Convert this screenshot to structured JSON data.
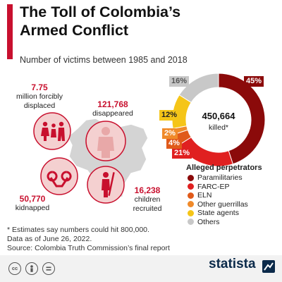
{
  "title_lines": [
    "The Toll of Colombia’s",
    "Armed Conflict"
  ],
  "subtitle": "Number of victims between 1985 and 2018",
  "stats": {
    "displaced": {
      "value": "7.75",
      "label_lines": [
        "million forcibly",
        "displaced"
      ]
    },
    "disappeared": {
      "value": "121,768",
      "label": "disappeared"
    },
    "kidnapped": {
      "value": "50,770",
      "label": "kidnapped"
    },
    "recruited": {
      "value": "16,238",
      "label_lines": [
        "children",
        "recruited"
      ]
    }
  },
  "chart_data": {
    "type": "pie",
    "center_value": "450,664",
    "center_label": "killed*",
    "legend_title": "Alleged perpetrators",
    "labels": [
      "Paramilitaries",
      "FARC-EP",
      "ELN",
      "Other guerrillas",
      "State agents",
      "Others"
    ],
    "values": [
      45,
      21,
      4,
      2,
      12,
      16
    ],
    "value_labels": [
      "45%",
      "21%",
      "4%",
      "2%",
      "12%",
      "16%"
    ],
    "colors": [
      "#8b0a0a",
      "#e02020",
      "#e05a1a",
      "#f08a2a",
      "#f5c518",
      "#c8c8c8"
    ]
  },
  "notes": [
    "* Estimates say numbers could hit 800,000.",
    "Data as of June 26, 2022.",
    "Source: Colombia Truth Commission’s final report"
  ],
  "footer": {
    "license_icons": [
      "cc-icon",
      "by-icon",
      "equals-icon"
    ],
    "brand": "statista"
  }
}
